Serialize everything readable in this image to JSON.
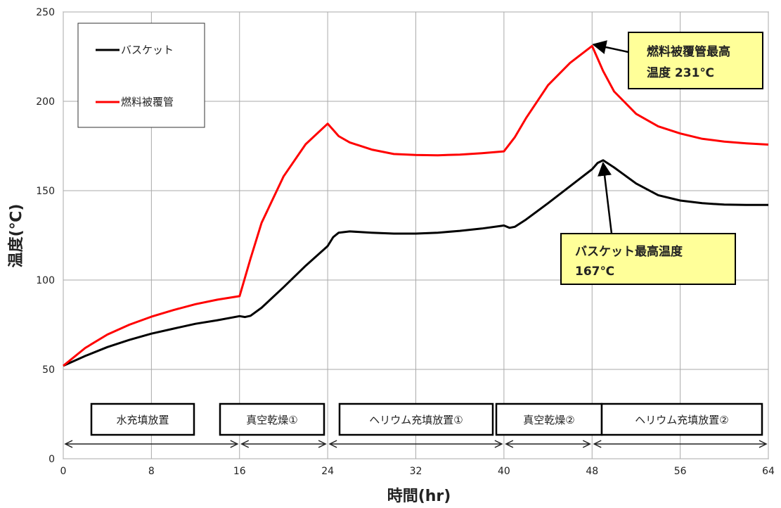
{
  "chart_data": {
    "type": "line",
    "xlabel": "時間(hr)",
    "ylabel": "温度(℃)",
    "xlim": [
      0,
      64
    ],
    "ylim": [
      0,
      250
    ],
    "x_ticks": [
      0,
      8,
      16,
      24,
      32,
      40,
      48,
      56,
      64
    ],
    "y_ticks": [
      0,
      50,
      100,
      150,
      200,
      250
    ],
    "grid": true,
    "legend_position": "top-left",
    "series": [
      {
        "name": "バスケット",
        "color": "#000000",
        "x": [
          0,
          2,
          4,
          6,
          8,
          10,
          12,
          14,
          16,
          16.5,
          17,
          18,
          20,
          22,
          24,
          24.5,
          25,
          26,
          28,
          30,
          32,
          34,
          36,
          38,
          40,
          40.5,
          41,
          42,
          44,
          46,
          48,
          48.5,
          49,
          50,
          52,
          54,
          56,
          58,
          60,
          62,
          64
        ],
        "y": [
          52,
          57.5,
          62.5,
          66.5,
          70,
          72.8,
          75.5,
          77.5,
          79.8,
          79.3,
          80,
          84.5,
          96,
          108,
          119,
          124,
          126.5,
          127.2,
          126.5,
          126,
          126,
          126.5,
          127.5,
          128.8,
          130.5,
          129.2,
          129.8,
          133.8,
          143,
          152.5,
          162,
          165.5,
          167,
          163,
          154,
          147.5,
          144.5,
          143,
          142.2,
          142,
          142
        ]
      },
      {
        "name": "燃料被覆管",
        "color": "#ff0000",
        "x": [
          0,
          2,
          4,
          6,
          8,
          10,
          12,
          14,
          16,
          17,
          18,
          20,
          22,
          24,
          24.5,
          25,
          26,
          28,
          30,
          32,
          34,
          36,
          38,
          40,
          41,
          42,
          44,
          46,
          48,
          48.5,
          49,
          50,
          52,
          54,
          56,
          58,
          60,
          62,
          64
        ],
        "y": [
          52,
          62,
          69.5,
          75,
          79.5,
          83.2,
          86.5,
          89,
          91,
          112,
          132,
          158,
          176,
          187.5,
          184,
          180.5,
          177,
          173,
          170.5,
          170,
          169.8,
          170.2,
          171,
          172,
          180,
          190.5,
          209,
          221.5,
          231,
          224,
          217,
          205.5,
          193,
          186,
          182,
          179,
          177.5,
          176.5,
          175.8
        ]
      }
    ],
    "phases": [
      {
        "label": "水充填放置",
        "start": 0,
        "end": 16
      },
      {
        "label": "真空乾燥①",
        "start": 16,
        "end": 24
      },
      {
        "label": "ヘリウム充填放置①",
        "start": 24,
        "end": 40
      },
      {
        "label": "真空乾燥②",
        "start": 40,
        "end": 48
      },
      {
        "label": "ヘリウム充填放置②",
        "start": 48,
        "end": 64
      }
    ],
    "annotations": [
      {
        "lines": [
          "燃料被覆管最高",
          "温度 231℃"
        ],
        "target_x": 48,
        "target_y": 231
      },
      {
        "lines": [
          "バスケット最高温度",
          "167℃"
        ],
        "target_x": 49,
        "target_y": 167
      }
    ],
    "annotation_fill": "#ffff99"
  }
}
